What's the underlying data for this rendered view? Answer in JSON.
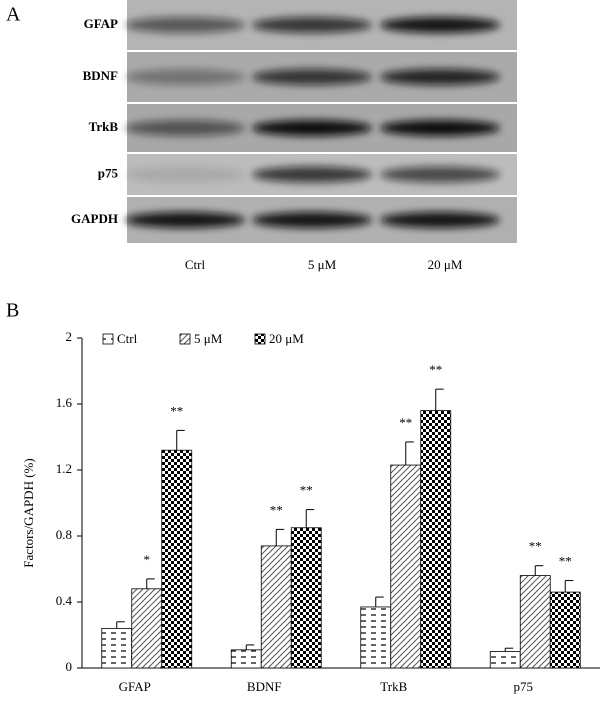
{
  "panel_a": {
    "label": "A",
    "rows": [
      "GFAP",
      "BDNF",
      "TrkB",
      "p75",
      "GAPDH"
    ],
    "lanes": [
      "Ctrl",
      "5 μM",
      "20 μM"
    ]
  },
  "chart_data": {
    "type": "bar",
    "panel_label": "B",
    "ylabel": "Factors/GAPDH (%)",
    "categories": [
      "GFAP",
      "BDNF",
      "TrkB",
      "p75"
    ],
    "series": [
      {
        "name": "Ctrl",
        "color": "#000000",
        "pattern": "dash",
        "values": [
          0.24,
          0.11,
          0.37,
          0.1
        ],
        "errors": [
          0.04,
          0.03,
          0.06,
          0.02
        ],
        "annotations": [
          null,
          null,
          null,
          null
        ]
      },
      {
        "name": "5 μM",
        "color": "#000000",
        "pattern": "hatch",
        "values": [
          0.48,
          0.74,
          1.23,
          0.56
        ],
        "errors": [
          0.06,
          0.1,
          0.14,
          0.06
        ],
        "annotations": [
          "*",
          "**",
          "**",
          "**"
        ]
      },
      {
        "name": "20 μM",
        "color": "#000000",
        "pattern": "checker",
        "values": [
          1.32,
          0.85,
          1.56,
          0.46
        ],
        "errors": [
          0.12,
          0.11,
          0.13,
          0.07
        ],
        "annotations": [
          "**",
          "**",
          "**",
          "**"
        ]
      }
    ],
    "ylim": [
      0,
      2
    ],
    "yticks": [
      0,
      0.4,
      0.8,
      1.2,
      1.6,
      2
    ],
    "legend": "top-left"
  }
}
